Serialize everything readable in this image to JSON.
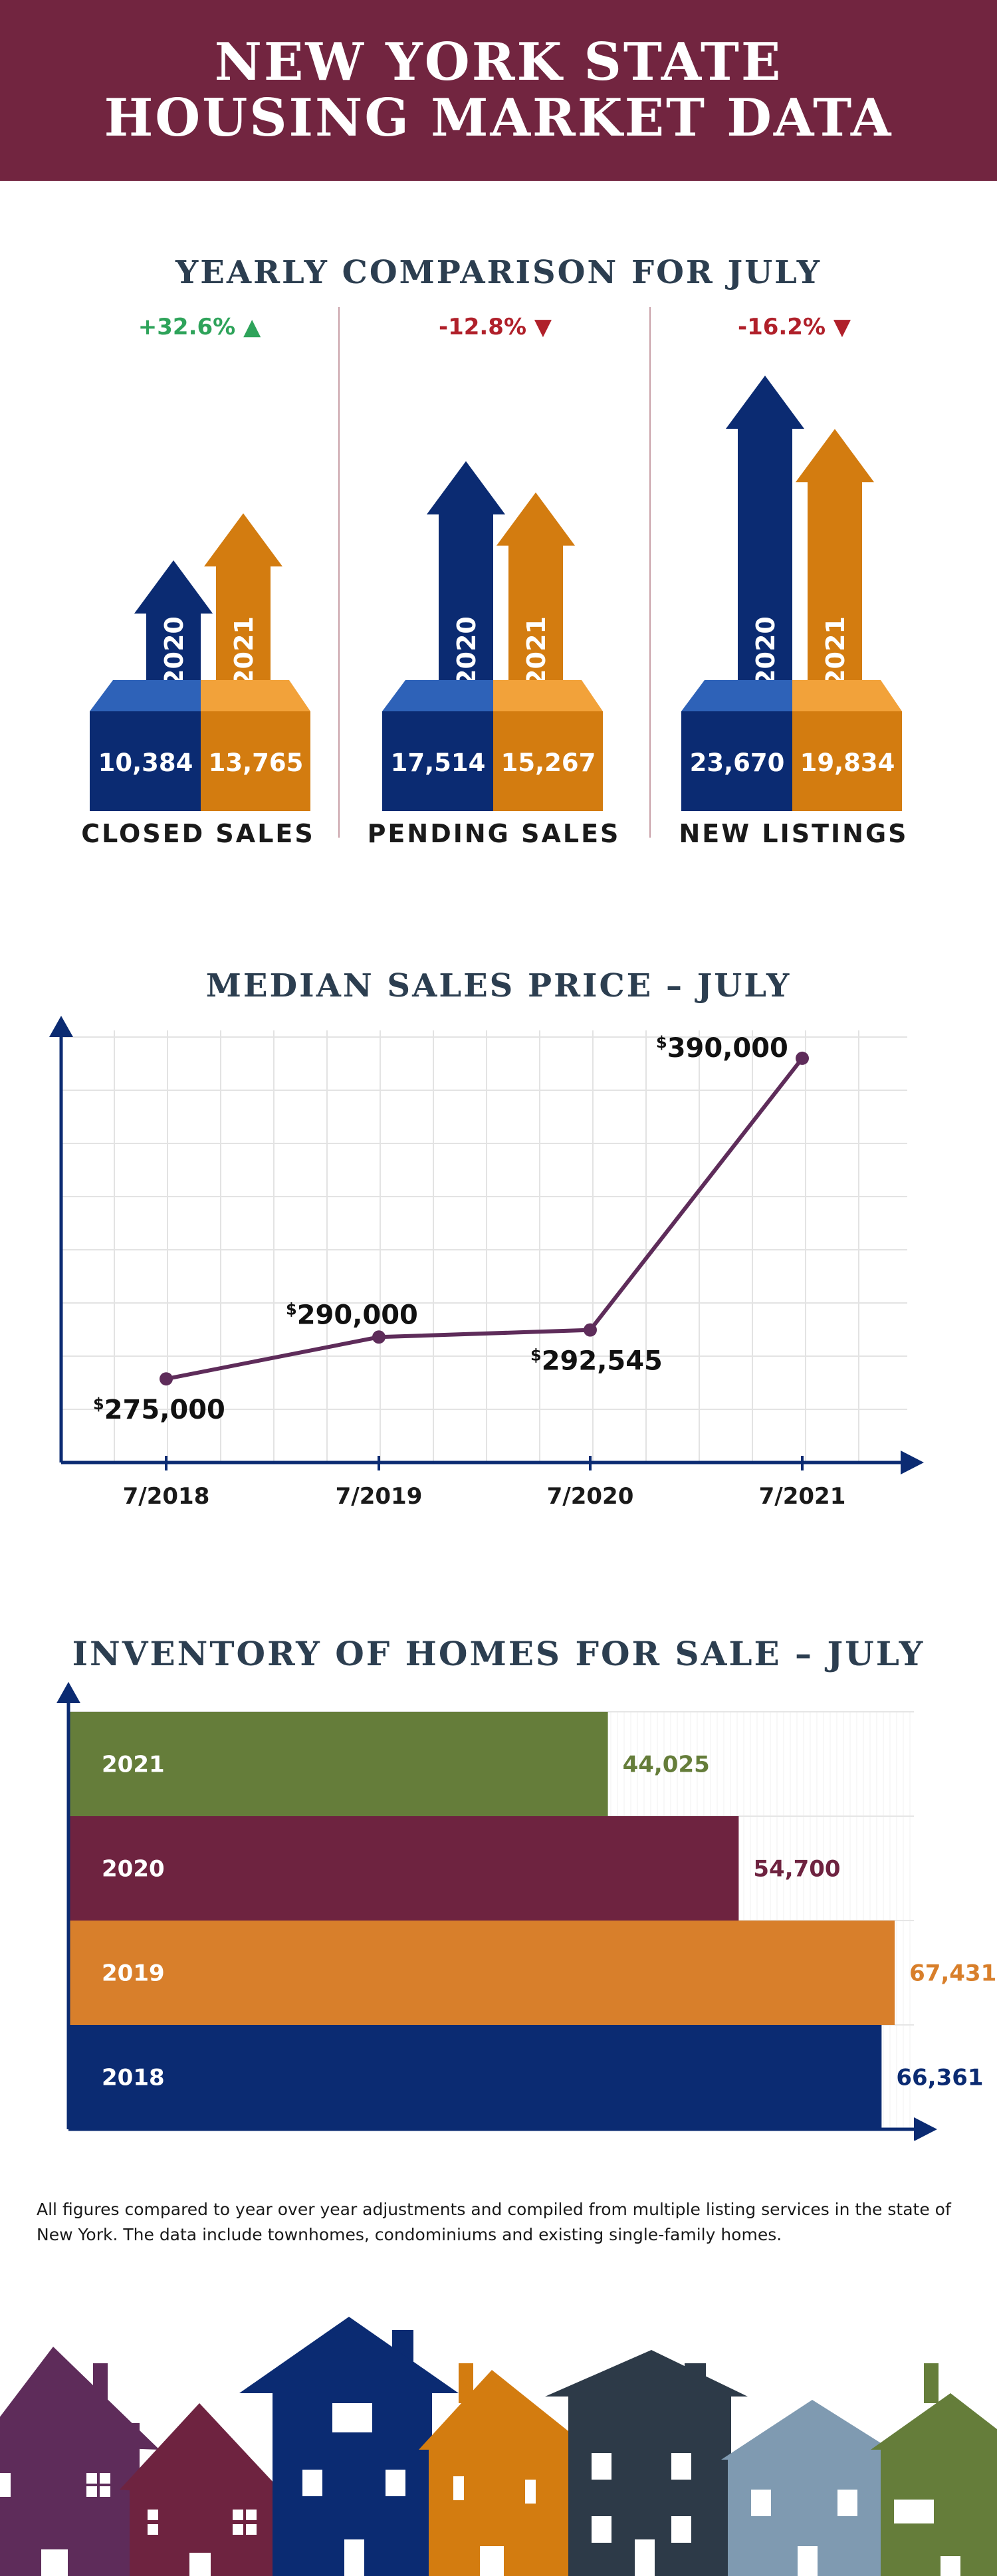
{
  "header": {
    "line1": "NEW YORK STATE",
    "line2": "HOUSING MARKET DATA"
  },
  "colors": {
    "maroon": "#722540",
    "navy": "#0b2b72",
    "orange": "#d37c10",
    "green": "#2ea35a",
    "red": "#b0202a",
    "purple": "#5e2c5a",
    "olive": "#657d3a",
    "wine": "#6e2340",
    "amber": "#d87f2b"
  },
  "comparison": {
    "title": "YEARLY COMPARISON FOR JULY",
    "items": [
      {
        "label": "CLOSED SALES",
        "change": "+32.6%",
        "direction": "up",
        "y2020": "2020",
        "y2021": "2021",
        "v2020": "10,384",
        "v2021": "13,765",
        "n2020": 10384,
        "n2021": 13765
      },
      {
        "label": "PENDING SALES",
        "change": "-12.8%",
        "direction": "down",
        "y2020": "2020",
        "y2021": "2021",
        "v2020": "17,514",
        "v2021": "15,267",
        "n2020": 17514,
        "n2021": 15267
      },
      {
        "label": "NEW LISTINGS",
        "change": "-16.2%",
        "direction": "down",
        "y2020": "2020",
        "y2021": "2021",
        "v2020": "23,670",
        "v2021": "19,834",
        "n2020": 23670,
        "n2021": 19834
      }
    ]
  },
  "median": {
    "title": "MEDIAN SALES PRICE – JULY",
    "chart_data": {
      "type": "line",
      "categories": [
        "7/2018",
        "7/2019",
        "7/2020",
        "7/2021"
      ],
      "values": [
        275000,
        290000,
        292545,
        390000
      ],
      "labels": [
        "275,000",
        "290,000",
        "292,545",
        "390,000"
      ],
      "currency": "$",
      "ylim": [
        245000,
        400000
      ],
      "grid": true
    }
  },
  "inventory": {
    "title": "INVENTORY OF HOMES FOR SALE – JULY",
    "chart_data": {
      "type": "bar",
      "orientation": "horizontal",
      "categories": [
        "2021",
        "2020",
        "2019",
        "2018"
      ],
      "values": [
        44025,
        54700,
        67431,
        66361
      ],
      "labels": [
        "44,025",
        "54,700",
        "67,431",
        "66,361"
      ],
      "colors": [
        "#657d3a",
        "#6e2340",
        "#d87f2b",
        "#0b2b72"
      ],
      "xlim": [
        0,
        69000
      ]
    }
  },
  "footnote": "All figures compared to year over year adjustments and compiled from multiple listing services in the state of New York.  The data include townhomes, condominiums and existing single-family homes."
}
